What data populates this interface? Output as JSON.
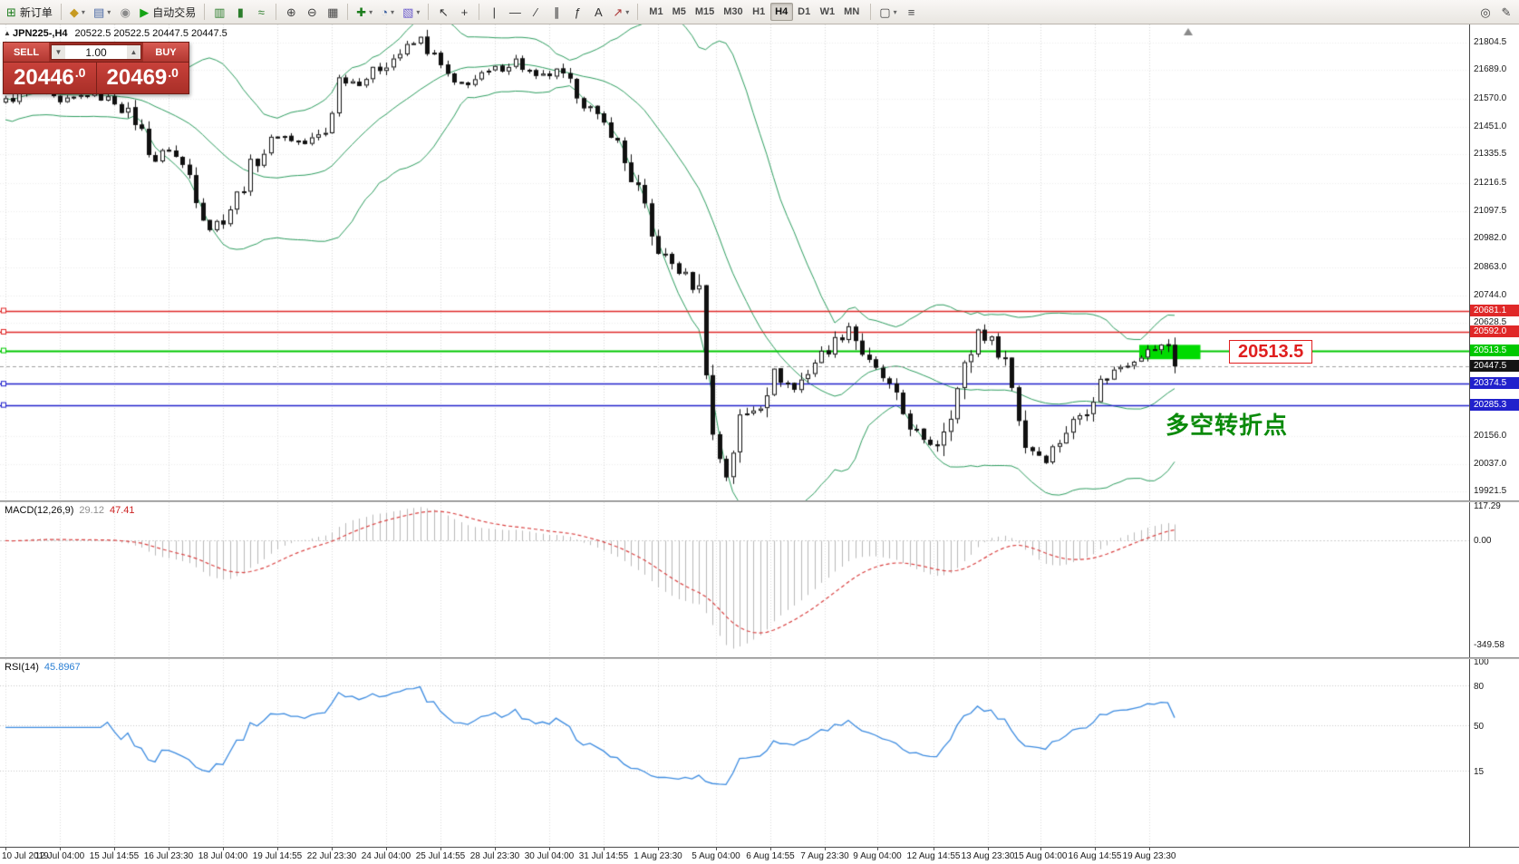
{
  "toolbar": {
    "dropdown_glyph": "▾",
    "timeframes": [
      "M1",
      "M5",
      "M15",
      "M30",
      "H1",
      "H4",
      "D1",
      "W1",
      "MN"
    ],
    "active_timeframe": "H4",
    "items": [
      {
        "type": "btn",
        "name": "new-order-button",
        "icon": "new-order-icon",
        "glyph": "⊞",
        "color": "#1d7d1d",
        "label": "新订单"
      },
      {
        "type": "sep"
      },
      {
        "type": "btn",
        "name": "new-chart-button",
        "icon": "new-chart-icon",
        "glyph": "◆",
        "color": "#c79a21",
        "dd": true
      },
      {
        "type": "btn",
        "name": "profiles-button",
        "icon": "profiles-icon",
        "glyph": "▤",
        "color": "#4a69a5",
        "dd": true
      },
      {
        "type": "btn",
        "name": "alerts-button",
        "icon": "alerts-icon",
        "glyph": "◉",
        "color": "#8a8a8a"
      },
      {
        "type": "btn",
        "name": "autotrade-button",
        "icon": "play-icon",
        "glyph": "▶",
        "color": "#15a315",
        "label": "自动交易"
      },
      {
        "type": "sep"
      },
      {
        "type": "btn",
        "name": "bar-chart-button",
        "icon": "bar-chart-icon",
        "glyph": "▥",
        "color": "#2b7d2b"
      },
      {
        "type": "btn",
        "name": "candlestick-button",
        "icon": "candlestick-icon",
        "glyph": "▮",
        "color": "#2b7d2b"
      },
      {
        "type": "btn",
        "name": "line-chart-button",
        "icon": "line-chart-icon",
        "glyph": "≈",
        "color": "#2b7d2b"
      },
      {
        "type": "sep"
      },
      {
        "type": "btn",
        "name": "zoom-in-button",
        "icon": "zoom-in-icon",
        "glyph": "⊕",
        "color": "#444444"
      },
      {
        "type": "btn",
        "name": "zoom-out-button",
        "icon": "zoom-out-icon",
        "glyph": "⊖",
        "color": "#444444"
      },
      {
        "type": "btn",
        "name": "tile-windows-button",
        "icon": "tile-windows-icon",
        "glyph": "▦",
        "color": "#444444"
      },
      {
        "type": "sep"
      },
      {
        "type": "btn",
        "name": "indicators-button",
        "icon": "indicators-icon",
        "glyph": "✚",
        "color": "#1d7d1d",
        "dd": true
      },
      {
        "type": "btn",
        "name": "periods-button",
        "icon": "clock-icon",
        "glyph": "◔",
        "color": "#3a5f9e",
        "dd": true
      },
      {
        "type": "btn",
        "name": "templates-button",
        "icon": "template-icon",
        "glyph": "▧",
        "color": "#6a5acd",
        "dd": true
      },
      {
        "type": "sep"
      },
      {
        "type": "btn",
        "name": "cursor-button",
        "icon": "cursor-icon",
        "glyph": "↖",
        "color": "#333333"
      },
      {
        "type": "btn",
        "name": "crosshair-button",
        "icon": "crosshair-icon",
        "glyph": "+",
        "color": "#333333"
      },
      {
        "type": "sep"
      },
      {
        "type": "btn",
        "name": "vertical-line-button",
        "icon": "vertical-line-icon",
        "glyph": "|",
        "color": "#333333"
      },
      {
        "type": "btn",
        "name": "horizontal-line-button",
        "icon": "horizontal-line-icon",
        "glyph": "—",
        "color": "#333333"
      },
      {
        "type": "btn",
        "name": "trendline-button",
        "icon": "trendline-icon",
        "glyph": "∕",
        "color": "#333333"
      },
      {
        "type": "btn",
        "name": "channel-button",
        "icon": "channel-icon",
        "glyph": "∥",
        "color": "#333333"
      },
      {
        "type": "btn",
        "name": "fibonacci-button",
        "icon": "fibonacci-icon",
        "glyph": "ƒ",
        "color": "#333333"
      },
      {
        "type": "btn",
        "name": "text-button",
        "icon": "text-icon",
        "glyph": "A",
        "color": "#333333"
      },
      {
        "type": "btn",
        "name": "arrows-button",
        "icon": "arrow-icon",
        "glyph": "↗",
        "color": "#aa3333",
        "dd": true
      },
      {
        "type": "sep"
      },
      {
        "type": "timeframes",
        "name": "timeframe-group"
      },
      {
        "type": "sep"
      },
      {
        "type": "btn",
        "name": "new-window-button",
        "icon": "window-icon",
        "glyph": "▢",
        "color": "#444444",
        "dd": true
      },
      {
        "type": "btn",
        "name": "objects-list-button",
        "icon": "list-icon",
        "glyph": "≡",
        "color": "#444444"
      },
      {
        "type": "spacer"
      },
      {
        "type": "btn",
        "name": "search-button",
        "icon": "search-icon",
        "glyph": "◎",
        "color": "#444444"
      },
      {
        "type": "btn",
        "name": "edit-button",
        "icon": "edit-icon",
        "glyph": "✎",
        "color": "#444444"
      }
    ]
  },
  "chart_title": {
    "symbol_period": "JPN225-,H4",
    "ohlc": "20522.5 20522.5 20447.5 20447.5"
  },
  "trade_panel": {
    "toggle_glyph": "▲",
    "sell_label": "SELL",
    "buy_label": "BUY",
    "volume": "1.00",
    "vol_down_glyph": "▼",
    "vol_up_glyph": "▲",
    "sell_price_main": "20446",
    "sell_price_frac": ".0",
    "buy_price_main": "20469",
    "buy_price_frac": ".0"
  },
  "chart_data": {
    "type": "candlestick",
    "symbol": "JPN225-",
    "period": "H4",
    "candle_count": 173,
    "last_price": 20447.5,
    "price_axis": {
      "max": 21880,
      "min": 19885,
      "ticks": [
        "21804.5",
        "21689.0",
        "21570.0",
        "21451.0",
        "21335.5",
        "21216.5",
        "21097.5",
        "20982.0",
        "20863.0",
        "20744.0",
        "20628.5",
        "20156.0",
        "20037.0",
        "19921.5"
      ]
    },
    "price_path_anchors": [
      [
        0,
        21560
      ],
      [
        4,
        21610
      ],
      [
        8,
        21545
      ],
      [
        12,
        21590
      ],
      [
        16,
        21560
      ],
      [
        19,
        21480
      ],
      [
        22,
        21310
      ],
      [
        24,
        21360
      ],
      [
        27,
        21250
      ],
      [
        30,
        21030
      ],
      [
        32,
        21070
      ],
      [
        34,
        21160
      ],
      [
        36,
        21280
      ],
      [
        40,
        21420
      ],
      [
        44,
        21380
      ],
      [
        47,
        21430
      ],
      [
        49,
        21650
      ],
      [
        52,
        21640
      ],
      [
        55,
        21700
      ],
      [
        58,
        21760
      ],
      [
        61,
        21820
      ],
      [
        63,
        21740
      ],
      [
        66,
        21620
      ],
      [
        69,
        21650
      ],
      [
        72,
        21690
      ],
      [
        75,
        21730
      ],
      [
        78,
        21650
      ],
      [
        81,
        21680
      ],
      [
        84,
        21600
      ],
      [
        87,
        21480
      ],
      [
        89,
        21440
      ],
      [
        91,
        21300
      ],
      [
        93,
        21180
      ],
      [
        95,
        20980
      ],
      [
        97,
        20900
      ],
      [
        99,
        20850
      ],
      [
        102,
        20760
      ],
      [
        104,
        20150
      ],
      [
        106,
        19990
      ],
      [
        108,
        20220
      ],
      [
        111,
        20300
      ],
      [
        113,
        20420
      ],
      [
        116,
        20350
      ],
      [
        119,
        20470
      ],
      [
        122,
        20550
      ],
      [
        124,
        20620
      ],
      [
        127,
        20450
      ],
      [
        129,
        20400
      ],
      [
        132,
        20250
      ],
      [
        135,
        20120
      ],
      [
        137,
        20130
      ],
      [
        140,
        20350
      ],
      [
        143,
        20600
      ],
      [
        145,
        20550
      ],
      [
        147,
        20480
      ],
      [
        150,
        20120
      ],
      [
        153,
        20060
      ],
      [
        156,
        20180
      ],
      [
        159,
        20280
      ],
      [
        161,
        20380
      ],
      [
        164,
        20450
      ],
      [
        167,
        20500
      ],
      [
        169,
        20520
      ],
      [
        171,
        20540
      ],
      [
        172,
        20447.5
      ]
    ],
    "hlines": [
      {
        "price": 20681.1,
        "label": "20681.1",
        "color": "#E02828",
        "width": 1.4
      },
      {
        "price": 20592.0,
        "label": "20592.0",
        "color": "#E02828",
        "width": 1.4
      },
      {
        "price": 20513.5,
        "label": "20513.5",
        "color": "#00C800",
        "width": 2
      },
      {
        "price": 20374.5,
        "label": "20374.5",
        "color": "#2121CC",
        "width": 1.6
      },
      {
        "price": 20285.3,
        "label": "20285.3",
        "color": "#2121CC",
        "width": 1.6
      }
    ],
    "current_price": {
      "value": 20447.5,
      "label": "20447.5",
      "badge_color": "#141414"
    },
    "bollinger": {
      "period": 20,
      "deviation": 2,
      "color": "#2E9E60"
    },
    "macd": {
      "label": "MACD(12,26,9)",
      "value_main": "29.12",
      "value_signal": "47.41",
      "axis": [
        "117.29",
        "0.00",
        "-349.58"
      ],
      "hist_color": "#b8b8b8",
      "signal_color": "#d94040"
    },
    "rsi": {
      "label": "RSI(14)",
      "value": "45.8967",
      "axis": [
        100,
        80,
        50,
        15
      ],
      "levels": [
        80,
        50,
        15
      ],
      "line_color": "#3c8be0"
    },
    "time_axis": [
      {
        "label": "10 Jul 2019",
        "index": 0,
        "align": "left"
      },
      {
        "label": "12 Jul 04:00",
        "index": 8
      },
      {
        "label": "15 Jul 14:55",
        "index": 16
      },
      {
        "label": "16 Jul 23:30",
        "index": 24
      },
      {
        "label": "18 Jul 04:00",
        "index": 32
      },
      {
        "label": "19 Jul 14:55",
        "index": 40
      },
      {
        "label": "22 Jul 23:30",
        "index": 48
      },
      {
        "label": "24 Jul 04:00",
        "index": 56
      },
      {
        "label": "25 Jul 14:55",
        "index": 64
      },
      {
        "label": "28 Jul 23:30",
        "index": 72
      },
      {
        "label": "30 Jul 04:00",
        "index": 80
      },
      {
        "label": "31 Jul 14:55",
        "index": 88
      },
      {
        "label": "1 Aug 23:30",
        "index": 96
      },
      {
        "label": "5 Aug 04:00",
        "index": 104.5
      },
      {
        "label": "6 Aug 14:55",
        "index": 112.5
      },
      {
        "label": "7 Aug 23:30",
        "index": 120.5
      },
      {
        "label": "9 Aug 04:00",
        "index": 128.3
      },
      {
        "label": "12 Aug 14:55",
        "index": 136.5
      },
      {
        "label": "13 Aug 23:30",
        "index": 144.5
      },
      {
        "label": "15 Aug 04:00",
        "index": 152.3
      },
      {
        "label": "16 Aug 14:55",
        "index": 160.3
      },
      {
        "label": "19 Aug 23:30",
        "index": 168.3
      }
    ],
    "annotations": {
      "turn_label": "20513.5",
      "turn_note": "多空转折点",
      "highlight_rect": {
        "i0": 166.8,
        "i1": 175.8,
        "price_top": 20537,
        "price_bottom": 20477,
        "color": "#00DB00"
      }
    }
  }
}
